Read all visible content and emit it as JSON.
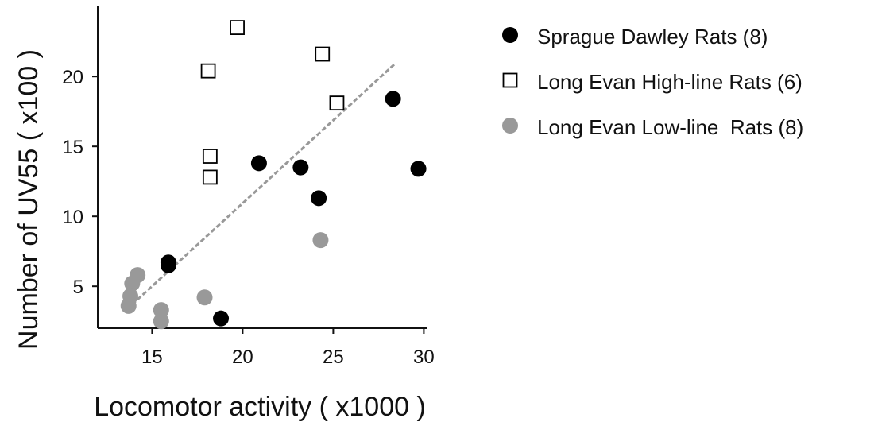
{
  "chart_data": {
    "type": "scatter",
    "xlabel": "Locomotor activity ( x1000 )",
    "ylabel": "Number of UV55 ( x100 )",
    "xlim": [
      12,
      31
    ],
    "ylim": [
      2,
      24
    ],
    "x_ticks": [
      15,
      20,
      25,
      30
    ],
    "y_ticks": [
      5,
      10,
      15,
      20
    ],
    "legend_position": "right",
    "series": [
      {
        "name": "Sprague Dawley Rats (8)",
        "marker": "filled-circle",
        "color": "#000000",
        "points": [
          {
            "x": 15.9,
            "y": 6.7
          },
          {
            "x": 15.9,
            "y": 6.5
          },
          {
            "x": 18.8,
            "y": 2.7
          },
          {
            "x": 20.9,
            "y": 13.8
          },
          {
            "x": 23.2,
            "y": 13.5
          },
          {
            "x": 24.2,
            "y": 11.3
          },
          {
            "x": 28.3,
            "y": 18.4
          },
          {
            "x": 29.7,
            "y": 13.4
          }
        ]
      },
      {
        "name": "Long Evan High-line Rats (6)",
        "marker": "open-square",
        "color": "#000000",
        "points": [
          {
            "x": 19.7,
            "y": 23.5
          },
          {
            "x": 18.1,
            "y": 20.4
          },
          {
            "x": 24.4,
            "y": 21.6
          },
          {
            "x": 25.2,
            "y": 18.1
          },
          {
            "x": 18.2,
            "y": 14.3
          },
          {
            "x": 18.2,
            "y": 12.8
          }
        ]
      },
      {
        "name": "Long Evan Low-line  Rats (8)",
        "marker": "filled-circle",
        "color": "#999999",
        "points": [
          {
            "x": 14.2,
            "y": 5.8
          },
          {
            "x": 13.9,
            "y": 5.2
          },
          {
            "x": 13.8,
            "y": 4.3
          },
          {
            "x": 13.7,
            "y": 3.6
          },
          {
            "x": 15.5,
            "y": 3.3
          },
          {
            "x": 15.5,
            "y": 2.5
          },
          {
            "x": 17.9,
            "y": 4.2
          },
          {
            "x": 24.3,
            "y": 8.3
          }
        ]
      }
    ],
    "trendline": {
      "style": "dashed",
      "color": "#999999",
      "from": {
        "x": 13.9,
        "y": 3.7
      },
      "to": {
        "x": 28.4,
        "y": 20.9
      }
    }
  }
}
